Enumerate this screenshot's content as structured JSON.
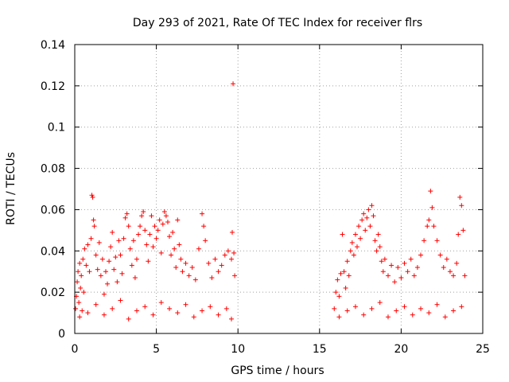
{
  "chart_data": {
    "type": "scatter",
    "title": "Day 293 of 2021, Rate Of TEC Index for receiver flrs",
    "xlabel": "GPS time / hours",
    "ylabel": "ROTI / TECUs",
    "xlim": [
      0,
      25
    ],
    "ylim": [
      0,
      0.14
    ],
    "xticks": [
      0,
      5,
      10,
      15,
      20,
      25
    ],
    "yticks": [
      0,
      0.02,
      0.04,
      0.06,
      0.08,
      0.1,
      0.12,
      0.14
    ],
    "xtick_labels": [
      "0",
      "5",
      "10",
      "15",
      "20",
      "25"
    ],
    "ytick_labels": [
      "0",
      "0.02",
      "0.04",
      "0.06",
      "0.08",
      "0.1",
      "0.12",
      "0.14"
    ],
    "grid": true,
    "marker": "+",
    "color": "#ff0000",
    "series": [
      {
        "name": "ROTI",
        "points": [
          [
            0.05,
            0.012
          ],
          [
            0.1,
            0.018
          ],
          [
            0.15,
            0.025
          ],
          [
            0.2,
            0.03
          ],
          [
            0.25,
            0.015
          ],
          [
            0.3,
            0.034
          ],
          [
            0.35,
            0.022
          ],
          [
            0.4,
            0.028
          ],
          [
            0.45,
            0.011
          ],
          [
            0.5,
            0.036
          ],
          [
            0.55,
            0.02
          ],
          [
            0.6,
            0.041
          ],
          [
            0.7,
            0.033
          ],
          [
            0.8,
            0.043
          ],
          [
            0.9,
            0.03
          ],
          [
            1.0,
            0.046
          ],
          [
            1.05,
            0.067
          ],
          [
            1.1,
            0.066
          ],
          [
            1.15,
            0.055
          ],
          [
            1.2,
            0.052
          ],
          [
            1.3,
            0.038
          ],
          [
            1.4,
            0.031
          ],
          [
            1.5,
            0.044
          ],
          [
            1.6,
            0.028
          ],
          [
            1.7,
            0.036
          ],
          [
            1.8,
            0.019
          ],
          [
            1.9,
            0.03
          ],
          [
            2.0,
            0.024
          ],
          [
            2.1,
            0.035
          ],
          [
            2.2,
            0.042
          ],
          [
            2.3,
            0.049
          ],
          [
            2.4,
            0.031
          ],
          [
            2.5,
            0.037
          ],
          [
            2.6,
            0.025
          ],
          [
            2.7,
            0.045
          ],
          [
            2.8,
            0.038
          ],
          [
            2.9,
            0.029
          ],
          [
            3.0,
            0.046
          ],
          [
            3.1,
            0.056
          ],
          [
            3.2,
            0.058
          ],
          [
            3.3,
            0.052
          ],
          [
            3.4,
            0.041
          ],
          [
            3.5,
            0.033
          ],
          [
            3.6,
            0.045
          ],
          [
            3.7,
            0.027
          ],
          [
            3.8,
            0.036
          ],
          [
            3.9,
            0.048
          ],
          [
            4.0,
            0.052
          ],
          [
            4.1,
            0.057
          ],
          [
            4.2,
            0.059
          ],
          [
            4.3,
            0.05
          ],
          [
            4.4,
            0.043
          ],
          [
            4.5,
            0.035
          ],
          [
            4.6,
            0.048
          ],
          [
            4.7,
            0.057
          ],
          [
            4.8,
            0.042
          ],
          [
            4.9,
            0.052
          ],
          [
            5.0,
            0.046
          ],
          [
            5.1,
            0.05
          ],
          [
            5.2,
            0.055
          ],
          [
            5.3,
            0.039
          ],
          [
            5.4,
            0.053
          ],
          [
            5.5,
            0.059
          ],
          [
            5.6,
            0.057
          ],
          [
            5.7,
            0.054
          ],
          [
            5.8,
            0.047
          ],
          [
            5.9,
            0.038
          ],
          [
            6.0,
            0.049
          ],
          [
            6.1,
            0.041
          ],
          [
            6.2,
            0.032
          ],
          [
            6.3,
            0.055
          ],
          [
            6.4,
            0.043
          ],
          [
            6.5,
            0.036
          ],
          [
            6.6,
            0.03
          ],
          [
            6.8,
            0.034
          ],
          [
            7.0,
            0.028
          ],
          [
            7.2,
            0.032
          ],
          [
            7.4,
            0.026
          ],
          [
            7.6,
            0.041
          ],
          [
            7.8,
            0.058
          ],
          [
            7.9,
            0.052
          ],
          [
            8.0,
            0.045
          ],
          [
            8.2,
            0.034
          ],
          [
            8.4,
            0.027
          ],
          [
            8.6,
            0.036
          ],
          [
            8.8,
            0.03
          ],
          [
            9.0,
            0.033
          ],
          [
            9.2,
            0.038
          ],
          [
            9.4,
            0.04
          ],
          [
            9.6,
            0.036
          ],
          [
            9.65,
            0.049
          ],
          [
            9.7,
            0.121
          ],
          [
            9.75,
            0.039
          ],
          [
            9.8,
            0.028
          ],
          [
            0.3,
            0.008
          ],
          [
            0.8,
            0.01
          ],
          [
            1.3,
            0.014
          ],
          [
            1.8,
            0.009
          ],
          [
            2.3,
            0.012
          ],
          [
            2.8,
            0.016
          ],
          [
            3.3,
            0.007
          ],
          [
            3.8,
            0.011
          ],
          [
            4.3,
            0.013
          ],
          [
            4.8,
            0.009
          ],
          [
            5.3,
            0.015
          ],
          [
            5.8,
            0.012
          ],
          [
            6.3,
            0.01
          ],
          [
            6.8,
            0.014
          ],
          [
            7.3,
            0.008
          ],
          [
            7.8,
            0.011
          ],
          [
            8.3,
            0.013
          ],
          [
            8.8,
            0.009
          ],
          [
            9.3,
            0.012
          ],
          [
            9.6,
            0.007
          ],
          [
            15.9,
            0.012
          ],
          [
            16.0,
            0.02
          ],
          [
            16.1,
            0.026
          ],
          [
            16.2,
            0.018
          ],
          [
            16.3,
            0.029
          ],
          [
            16.4,
            0.048
          ],
          [
            16.5,
            0.03
          ],
          [
            16.6,
            0.022
          ],
          [
            16.7,
            0.035
          ],
          [
            16.8,
            0.028
          ],
          [
            16.9,
            0.04
          ],
          [
            17.0,
            0.044
          ],
          [
            17.1,
            0.038
          ],
          [
            17.2,
            0.048
          ],
          [
            17.3,
            0.042
          ],
          [
            17.4,
            0.052
          ],
          [
            17.5,
            0.046
          ],
          [
            17.6,
            0.055
          ],
          [
            17.7,
            0.058
          ],
          [
            17.8,
            0.05
          ],
          [
            17.9,
            0.056
          ],
          [
            18.0,
            0.06
          ],
          [
            18.1,
            0.052
          ],
          [
            18.2,
            0.062
          ],
          [
            18.3,
            0.057
          ],
          [
            18.4,
            0.045
          ],
          [
            18.5,
            0.04
          ],
          [
            18.6,
            0.048
          ],
          [
            18.7,
            0.042
          ],
          [
            18.8,
            0.035
          ],
          [
            18.9,
            0.03
          ],
          [
            19.0,
            0.036
          ],
          [
            19.2,
            0.028
          ],
          [
            19.4,
            0.033
          ],
          [
            19.6,
            0.025
          ],
          [
            19.8,
            0.032
          ],
          [
            20.0,
            0.027
          ],
          [
            20.2,
            0.034
          ],
          [
            20.4,
            0.03
          ],
          [
            20.6,
            0.036
          ],
          [
            20.8,
            0.028
          ],
          [
            21.0,
            0.032
          ],
          [
            21.2,
            0.038
          ],
          [
            21.4,
            0.045
          ],
          [
            21.6,
            0.052
          ],
          [
            21.7,
            0.055
          ],
          [
            21.8,
            0.069
          ],
          [
            21.9,
            0.061
          ],
          [
            22.0,
            0.052
          ],
          [
            22.2,
            0.045
          ],
          [
            22.4,
            0.038
          ],
          [
            22.6,
            0.032
          ],
          [
            22.8,
            0.036
          ],
          [
            23.0,
            0.03
          ],
          [
            23.2,
            0.028
          ],
          [
            23.4,
            0.034
          ],
          [
            23.5,
            0.048
          ],
          [
            23.6,
            0.066
          ],
          [
            23.7,
            0.062
          ],
          [
            23.8,
            0.05
          ],
          [
            23.9,
            0.028
          ],
          [
            16.2,
            0.008
          ],
          [
            16.7,
            0.011
          ],
          [
            17.2,
            0.013
          ],
          [
            17.7,
            0.009
          ],
          [
            18.2,
            0.012
          ],
          [
            18.7,
            0.015
          ],
          [
            19.2,
            0.008
          ],
          [
            19.7,
            0.011
          ],
          [
            20.2,
            0.013
          ],
          [
            20.7,
            0.009
          ],
          [
            21.2,
            0.012
          ],
          [
            21.7,
            0.01
          ],
          [
            22.2,
            0.014
          ],
          [
            22.7,
            0.008
          ],
          [
            23.2,
            0.011
          ],
          [
            23.7,
            0.013
          ]
        ]
      }
    ]
  }
}
